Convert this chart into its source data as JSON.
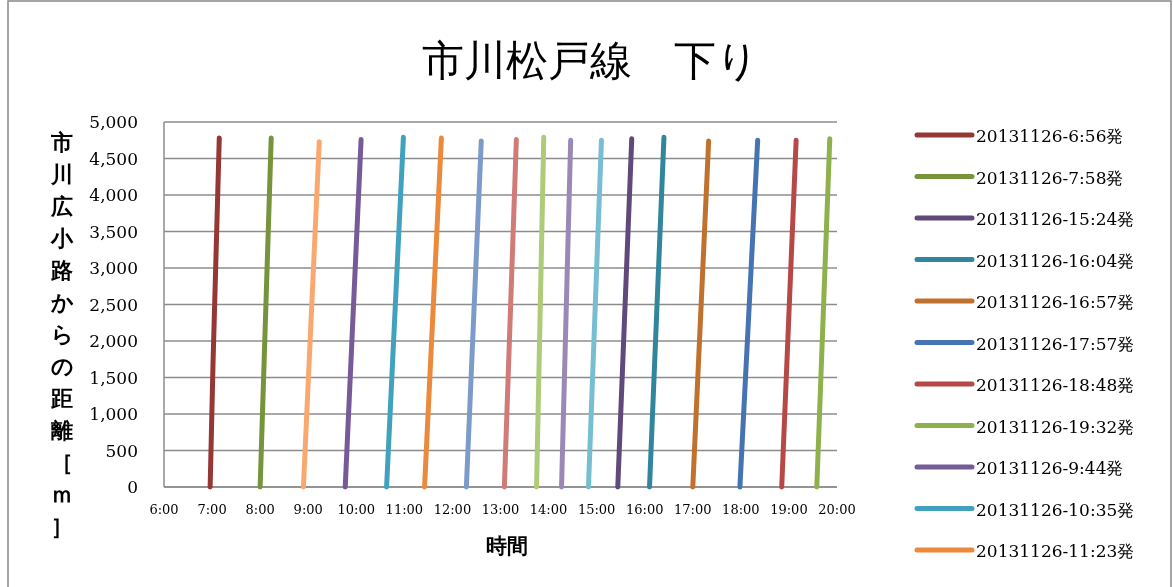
{
  "chart_data": {
    "type": "line",
    "title": "市川松戸線　下り",
    "xlabel": "時間",
    "ylabel": "市川広小路からの距離［ｍ］",
    "xlim": [
      6,
      20
    ],
    "xticks": [
      {
        "value": 6,
        "label": "6:00"
      },
      {
        "value": 7,
        "label": "7:00"
      },
      {
        "value": 8,
        "label": "8:00"
      },
      {
        "value": 9,
        "label": "9:00"
      },
      {
        "value": 10,
        "label": "10:00"
      },
      {
        "value": 11,
        "label": "11:00"
      },
      {
        "value": 12,
        "label": "12:00"
      },
      {
        "value": 13,
        "label": "13:00"
      },
      {
        "value": 14,
        "label": "14:00"
      },
      {
        "value": 15,
        "label": "15:00"
      },
      {
        "value": 16,
        "label": "16:00"
      },
      {
        "value": 17,
        "label": "17:00"
      },
      {
        "value": 18,
        "label": "18:00"
      },
      {
        "value": 19,
        "label": "19:00"
      },
      {
        "value": 20,
        "label": "20:00"
      }
    ],
    "ylim": [
      0,
      5000
    ],
    "yticks": [
      0,
      500,
      {
        "value": 1000,
        "label": "1,000"
      },
      {
        "value": 1500,
        "label": "1,500"
      },
      {
        "value": 2000,
        "label": "2,000"
      },
      {
        "value": 2500,
        "label": "2,500"
      },
      {
        "value": 3000,
        "label": "3,000"
      },
      {
        "value": 3500,
        "label": "3,500"
      },
      {
        "value": 4000,
        "label": "4,000"
      },
      {
        "value": 4500,
        "label": "4,500"
      },
      {
        "value": 5000,
        "label": "5,000"
      }
    ],
    "grid": "y",
    "legend": "right",
    "series": [
      {
        "name": "20131126-6:56発",
        "color": "#953735",
        "x": [
          6.96,
          7.02,
          7.15
        ],
        "values": [
          0,
          1700,
          4780
        ]
      },
      {
        "name": "20131126-7:58発",
        "color": "#77933c",
        "x": [
          8.0,
          8.23
        ],
        "values": [
          0,
          4780
        ]
      },
      {
        "name": "20131126-15:24発",
        "color": "#604a7b",
        "x": [
          15.44,
          15.73
        ],
        "values": [
          0,
          4770
        ]
      },
      {
        "name": "20131126-16:04発",
        "color": "#31859c",
        "x": [
          16.1,
          16.4
        ],
        "values": [
          0,
          4790
        ]
      },
      {
        "name": "20131126-16:57発",
        "color": "#c0712e",
        "x": [
          17.0,
          17.33
        ],
        "values": [
          0,
          4740
        ]
      },
      {
        "name": "20131126-17:57発",
        "color": "#4674b2",
        "x": [
          17.98,
          18.35
        ],
        "values": [
          0,
          4750
        ]
      },
      {
        "name": "20131126-18:48発",
        "color": "#b64845",
        "x": [
          18.85,
          19.15
        ],
        "values": [
          0,
          4750
        ]
      },
      {
        "name": "20131126-19:32発",
        "color": "#8fb14c",
        "x": [
          19.58,
          19.85
        ],
        "values": [
          0,
          4770
        ]
      },
      {
        "name": "20131126-9:44発",
        "color": "#775a98",
        "x": [
          9.77,
          10.1
        ],
        "values": [
          0,
          4760
        ]
      },
      {
        "name": "20131126-10:35発",
        "color": "#41a2bd",
        "x": [
          10.63,
          10.98
        ],
        "values": [
          0,
          4790
        ]
      },
      {
        "name": "20131126-11:23発",
        "color": "#eb8a3c",
        "x": [
          11.42,
          11.77
        ],
        "values": [
          0,
          4780
        ]
      },
      {
        "color": "#f9a870",
        "x": [
          8.9,
          9.23
        ],
        "values": [
          0,
          4730
        ]
      },
      {
        "color": "#7c9bc9",
        "x": [
          12.29,
          12.6
        ],
        "values": [
          0,
          4740
        ]
      },
      {
        "color": "#d07b78",
        "x": [
          13.08,
          13.33
        ],
        "values": [
          0,
          4760
        ]
      },
      {
        "color": "#adcb79",
        "x": [
          13.75,
          13.9
        ],
        "values": [
          0,
          4790
        ]
      },
      {
        "color": "#9a88b7",
        "x": [
          14.27,
          14.46
        ],
        "values": [
          0,
          4750
        ]
      },
      {
        "color": "#77bed2",
        "x": [
          14.83,
          15.1
        ],
        "values": [
          0,
          4750
        ]
      }
    ]
  }
}
